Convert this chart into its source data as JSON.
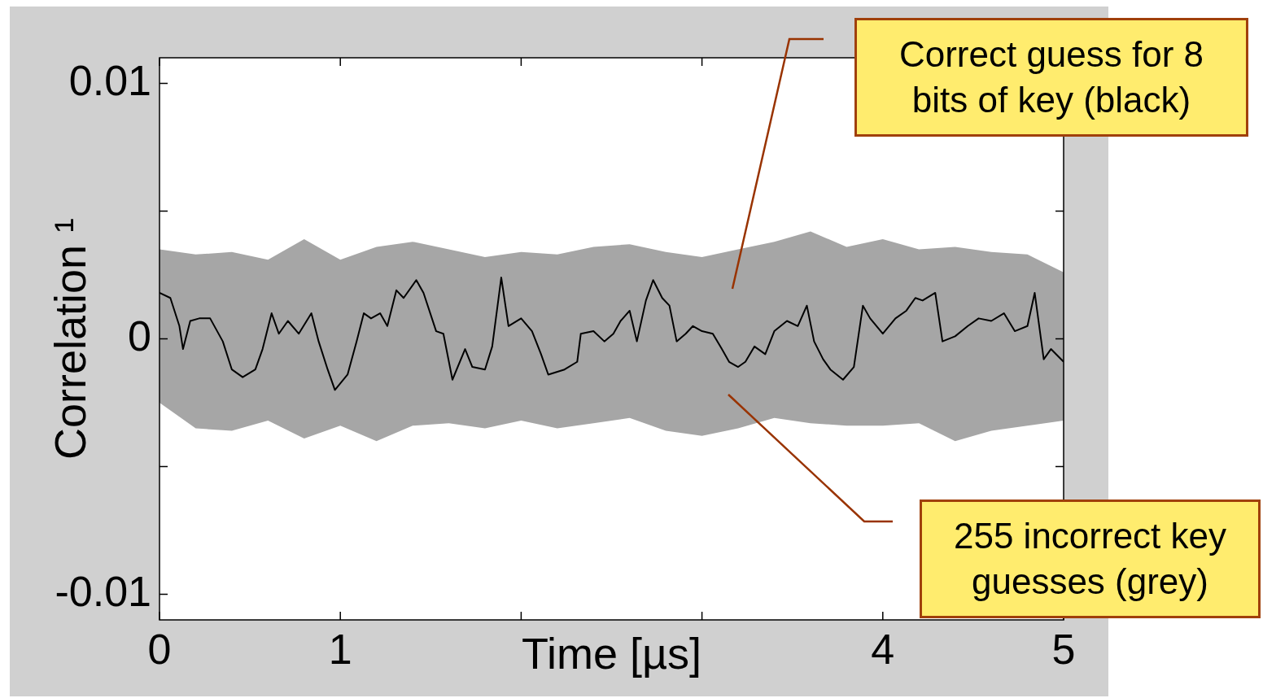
{
  "chart_data": {
    "type": "line",
    "ylabel": "Correlation ¹",
    "xlabel": "Time [µs]",
    "xlim": [
      0,
      5
    ],
    "xticks": [
      0,
      1,
      {
        "value": 2,
        "label": null
      },
      {
        "value": 3,
        "label": null
      },
      4,
      5
    ],
    "ylim": [
      -0.011,
      0.011
    ],
    "yticks": [
      {
        "value": -0.01,
        "label": "-0.01"
      },
      {
        "value": -0.005,
        "label": null
      },
      0,
      {
        "value": 0.005,
        "label": null
      },
      {
        "value": 0.01,
        "label": "0.01"
      }
    ],
    "grid": false,
    "legend": false,
    "annotations": [
      "Correct guess for 8 bits of key (black)",
      "255 incorrect key guesses (grey)"
    ],
    "series": [
      {
        "color": "#a6a6a6",
        "x": [
          0,
          0.2,
          0.4,
          0.6,
          0.8,
          1.0,
          1.2,
          1.4,
          1.6,
          1.8,
          2.0,
          2.2,
          2.4,
          2.6,
          2.8,
          3.0,
          3.2,
          3.4,
          3.6,
          3.8,
          4.0,
          4.2,
          4.4,
          4.6,
          4.8,
          5.0
        ],
        "values": [
          null,
          null,
          null,
          null,
          null,
          null,
          null,
          null,
          null,
          null,
          null,
          null,
          null,
          null,
          null,
          null,
          null,
          null,
          null,
          null,
          null,
          null,
          null,
          null,
          null,
          null
        ],
        "upper": [
          0.0035,
          0.0033,
          0.0034,
          0.0031,
          0.0039,
          0.0031,
          0.0036,
          0.0038,
          0.0035,
          0.0032,
          0.0034,
          0.0033,
          0.0036,
          0.0037,
          0.0034,
          0.0032,
          0.0035,
          0.0038,
          0.0042,
          0.0036,
          0.0039,
          0.0035,
          0.0036,
          0.0034,
          0.0033,
          0.0026
        ],
        "lower": [
          -0.0025,
          -0.0035,
          -0.0036,
          -0.0032,
          -0.0039,
          -0.0034,
          -0.004,
          -0.0034,
          -0.0033,
          -0.0035,
          -0.0032,
          -0.0035,
          -0.0033,
          -0.0031,
          -0.0036,
          -0.0038,
          -0.0035,
          -0.0031,
          -0.0033,
          -0.0034,
          -0.0034,
          -0.0033,
          -0.004,
          -0.0036,
          -0.0034,
          -0.0032
        ]
      },
      {
        "color": "#000000",
        "x": [
          0,
          0.06,
          0.11,
          0.13,
          0.17,
          0.22,
          0.28,
          0.35,
          0.4,
          0.46,
          0.53,
          0.57,
          0.62,
          0.66,
          0.71,
          0.77,
          0.84,
          0.88,
          0.93,
          0.97,
          1.04,
          1.09,
          1.13,
          1.17,
          1.22,
          1.26,
          1.31,
          1.35,
          1.42,
          1.46,
          1.53,
          1.57,
          1.62,
          1.69,
          1.73,
          1.8,
          1.84,
          1.89,
          1.93,
          2.0,
          2.06,
          2.11,
          2.15,
          2.24,
          2.31,
          2.33,
          2.4,
          2.46,
          2.51,
          2.55,
          2.6,
          2.64,
          2.69,
          2.73,
          2.78,
          2.82,
          2.86,
          2.91,
          2.95,
          3.0,
          3.06,
          3.11,
          3.15,
          3.2,
          3.24,
          3.29,
          3.35,
          3.4,
          3.47,
          3.53,
          3.58,
          3.62,
          3.67,
          3.71,
          3.78,
          3.84,
          3.89,
          3.93,
          4.0,
          4.07,
          4.13,
          4.18,
          4.22,
          4.29,
          4.33,
          4.4,
          4.47,
          4.53,
          4.6,
          4.67,
          4.73,
          4.8,
          4.84,
          4.89,
          4.93,
          5.0
        ],
        "values": [
          0.0018,
          0.0016,
          0.0005,
          -0.0004,
          0.0007,
          0.0008,
          0.0008,
          -0.0001,
          -0.0012,
          -0.0015,
          -0.0012,
          -0.0004,
          0.001,
          0.0002,
          0.0007,
          0.0002,
          0.001,
          -0.0001,
          -0.0012,
          -0.002,
          -0.0014,
          -0.0001,
          0.001,
          0.0008,
          0.001,
          0.0005,
          0.0019,
          0.0016,
          0.0023,
          0.0018,
          0.0003,
          0.0002,
          -0.0016,
          -0.0004,
          -0.0011,
          -0.0012,
          -0.0003,
          0.0024,
          0.0005,
          0.0008,
          0.0003,
          -0.0006,
          -0.0014,
          -0.0012,
          -0.0009,
          0.0002,
          0.0003,
          -0.0001,
          0.0002,
          0.0007,
          0.0011,
          -0.0001,
          0.0015,
          0.0023,
          0.0016,
          0.0013,
          -0.0001,
          0.0002,
          0.0005,
          0.0003,
          0.0002,
          -0.0004,
          -0.0009,
          -0.0011,
          -0.0009,
          -0.0003,
          -0.0006,
          0.0003,
          0.0007,
          0.0005,
          0.0013,
          -0.0001,
          -0.0008,
          -0.0012,
          -0.0016,
          -0.0011,
          0.0013,
          0.0008,
          0.0002,
          0.0008,
          0.0011,
          0.0016,
          0.0015,
          0.0018,
          -0.0001,
          0.0001,
          0.0005,
          0.0008,
          0.0007,
          0.001,
          0.0003,
          0.0005,
          0.0018,
          -0.0008,
          -0.0004,
          -0.0009
        ]
      }
    ]
  }
}
